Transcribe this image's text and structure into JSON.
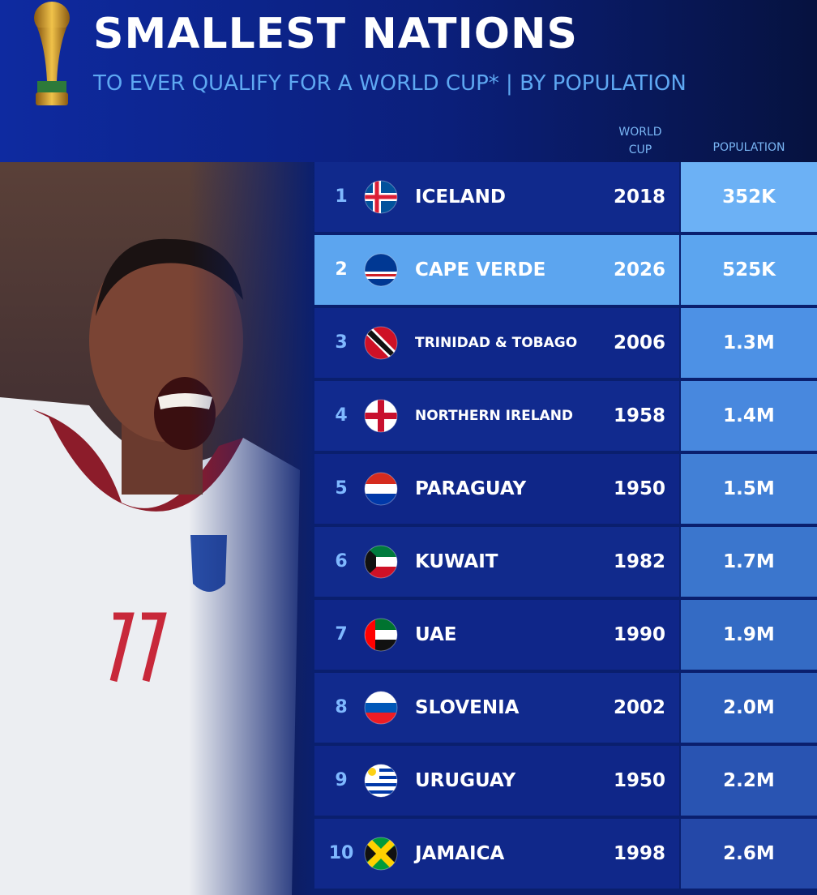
{
  "header": {
    "title": "SMALLEST NATIONS",
    "subtitle": "TO EVER QUALIFY FOR A WORLD CUP* | BY POPULATION"
  },
  "table": {
    "columns": [
      "WORLD CUP",
      "POPULATION"
    ],
    "rows": [
      [
        "1",
        "ICELAND",
        "2018",
        "352K"
      ],
      [
        "2",
        "CAPE VERDE",
        "2026",
        "525K"
      ],
      [
        "3",
        "TRINIDAD & TOBAGO",
        "2006",
        "1.3M"
      ],
      [
        "4",
        "NORTHERN IRELAND",
        "1958",
        "1.4M"
      ],
      [
        "5",
        "PARAGUAY",
        "1950",
        "1.5M"
      ],
      [
        "6",
        "KUWAIT",
        "1982",
        "1.7M"
      ],
      [
        "7",
        "UAE",
        "1990",
        "1.9M"
      ],
      [
        "8",
        "SLOVENIA",
        "2002",
        "2.0M"
      ],
      [
        "9",
        "URUGUAY",
        "1950",
        "2.2M"
      ],
      [
        "10",
        "JAMAICA",
        "1998",
        "2.6M"
      ]
    ]
  }
}
